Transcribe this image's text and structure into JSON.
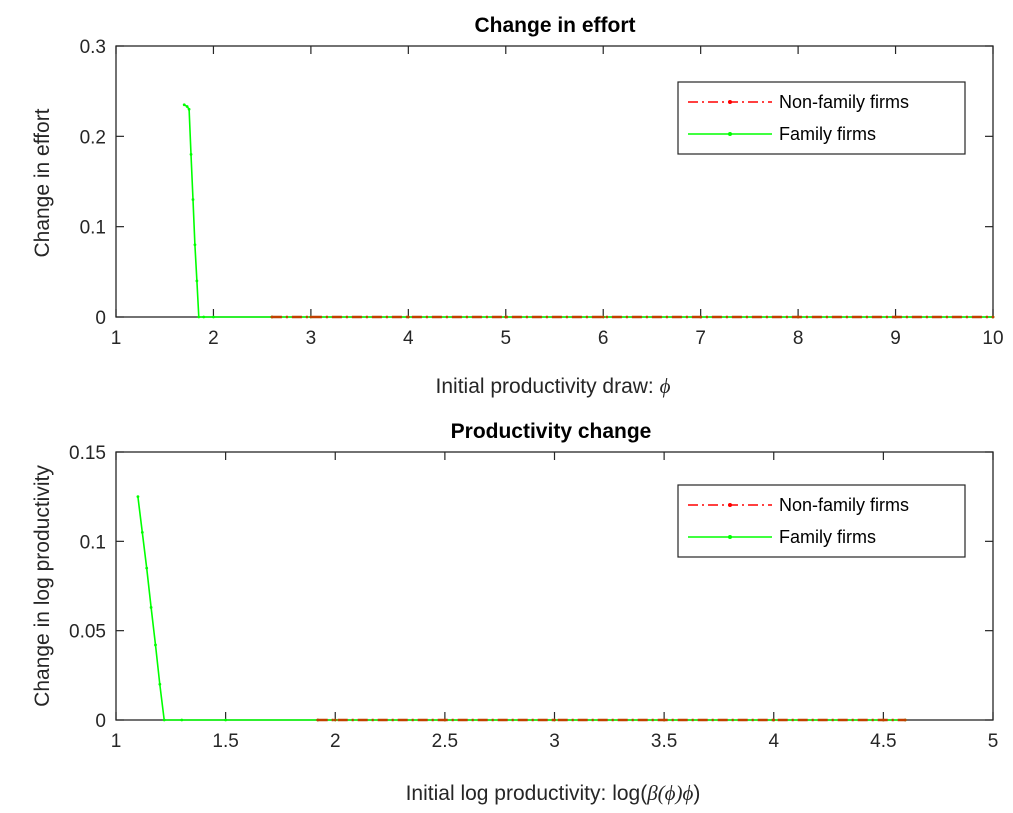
{
  "chart_data": [
    {
      "type": "line",
      "title": "Change in effort",
      "xlabel_text": "Initial productivity draw: ",
      "xlabel_symbol": "ϕ",
      "ylabel": "Change in effort",
      "xlim": [
        1,
        10
      ],
      "ylim": [
        0,
        0.3
      ],
      "xticks": [
        "1",
        "2",
        "3",
        "4",
        "5",
        "6",
        "7",
        "8",
        "9",
        "10"
      ],
      "yticks": [
        "0",
        "0.1",
        "0.2",
        "0.3"
      ],
      "legend_position": "top-right",
      "series": [
        {
          "name": "Non-family firms",
          "color": "#ff0000",
          "style": "dash-dot with point markers",
          "x": [
            2.6,
            3,
            4,
            5,
            6,
            7,
            8,
            9,
            10
          ],
          "y": [
            0,
            0,
            0,
            0,
            0,
            0,
            0,
            0,
            0
          ]
        },
        {
          "name": "Family firms",
          "color": "#00ff00",
          "style": "solid with point markers",
          "x": [
            1.7,
            1.73,
            1.75,
            1.77,
            1.79,
            1.81,
            1.83,
            1.85,
            1.9,
            2.0,
            2.6,
            3,
            4,
            5,
            6,
            7,
            8,
            9,
            10
          ],
          "y": [
            0.235,
            0.233,
            0.23,
            0.18,
            0.13,
            0.08,
            0.04,
            0,
            0,
            0,
            0,
            0,
            0,
            0,
            0,
            0,
            0,
            0,
            0
          ]
        }
      ],
      "overlap_color": "#c04000"
    },
    {
      "type": "line",
      "title": "Productivity change",
      "xlabel_text": "Initial log productivity: log(",
      "xlabel_symbol": "β(ϕ)ϕ",
      "xlabel_end": ")",
      "ylabel": "Change in log productivity",
      "xlim": [
        1,
        5
      ],
      "ylim": [
        0,
        0.15
      ],
      "xticks": [
        "1",
        "1.5",
        "2",
        "2.5",
        "3",
        "3.5",
        "4",
        "4.5",
        "5"
      ],
      "yticks": [
        "0",
        "0.05",
        "0.1",
        "0.15"
      ],
      "legend_position": "top-right",
      "series": [
        {
          "name": "Non-family firms",
          "color": "#ff0000",
          "style": "dash-dot with point markers",
          "x": [
            1.92,
            2,
            2.5,
            3,
            3.5,
            4,
            4.5,
            4.6
          ],
          "y": [
            0,
            0,
            0,
            0,
            0,
            0,
            0,
            0
          ]
        },
        {
          "name": "Family firms",
          "color": "#00ff00",
          "style": "solid with point markers",
          "x": [
            1.1,
            1.12,
            1.14,
            1.16,
            1.18,
            1.2,
            1.22,
            1.3,
            1.5,
            1.92,
            2,
            2.5,
            3,
            3.5,
            4,
            4.5,
            4.6
          ],
          "y": [
            0.125,
            0.105,
            0.085,
            0.063,
            0.042,
            0.02,
            0,
            0,
            0,
            0,
            0,
            0,
            0,
            0,
            0,
            0,
            0
          ]
        }
      ],
      "overlap_color": "#c04000"
    }
  ]
}
